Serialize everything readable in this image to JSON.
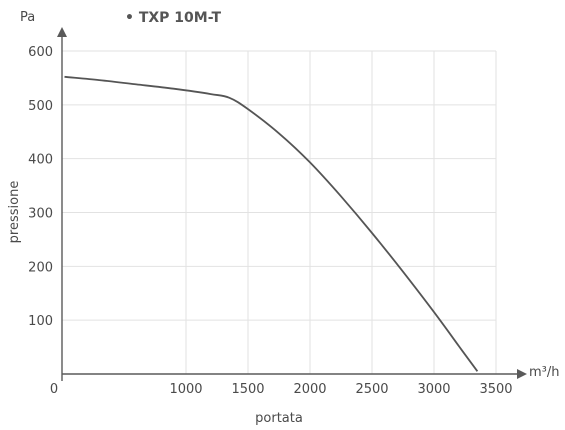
{
  "chart_data": {
    "type": "line",
    "legend": "• TXP 10M-T",
    "xlabel": "portata",
    "ylabel": "pressione",
    "x_unit": "m³/h",
    "y_unit": "Pa",
    "xlim": [
      0,
      3500
    ],
    "ylim": [
      0,
      600
    ],
    "x_ticks": [
      "0",
      "1000",
      "1500",
      "2000",
      "2500",
      "3000",
      "3500"
    ],
    "y_ticks": [
      "100",
      "200",
      "300",
      "400",
      "500",
      "600"
    ],
    "grid": true,
    "line_color": "#555555",
    "series": [
      {
        "x": [
          20,
          300,
          600,
          900,
          1200,
          1350,
          1500,
          1750,
          2000,
          2250,
          2500,
          2750,
          3000,
          3200,
          3350
        ],
        "y": [
          552,
          546,
          538,
          530,
          520,
          513,
          492,
          447,
          393,
          330,
          262,
          190,
          115,
          52,
          5
        ]
      }
    ]
  }
}
